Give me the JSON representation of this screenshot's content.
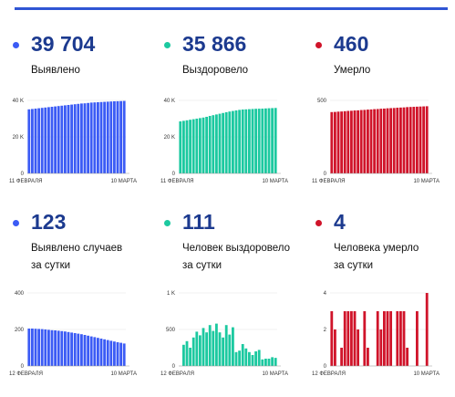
{
  "panels": [
    {
      "id": "confirmed-total",
      "color": "#3b5bf5",
      "value": "39 704",
      "label_lines": [
        "Выявлено"
      ],
      "chart_data": {
        "type": "bar",
        "title": "",
        "xlabel": "",
        "ylabel": "",
        "ylim": [
          0,
          40000
        ],
        "y_ticks": [
          0,
          20000,
          40000
        ],
        "y_tick_labels": [
          "0",
          "20 K",
          "40 K"
        ],
        "x_tick_labels": [
          "11 ФЕВРАЛЯ",
          "10 МАРТА"
        ],
        "values": [
          35100,
          35300,
          35500,
          35700,
          35900,
          36100,
          36300,
          36500,
          36700,
          36900,
          37100,
          37300,
          37500,
          37700,
          37900,
          38100,
          38300,
          38400,
          38600,
          38800,
          38900,
          39000,
          39100,
          39200,
          39300,
          39400,
          39500,
          39550,
          39620,
          39704
        ]
      }
    },
    {
      "id": "recovered-total",
      "color": "#1cc9a0",
      "value": "35 866",
      "label_lines": [
        "Выздоровело"
      ],
      "chart_data": {
        "type": "bar",
        "title": "",
        "xlabel": "",
        "ylabel": "",
        "ylim": [
          0,
          40000
        ],
        "y_ticks": [
          0,
          20000,
          40000
        ],
        "y_tick_labels": [
          "0",
          "20 K",
          "40 K"
        ],
        "x_tick_labels": [
          "11 ФЕВРАЛЯ",
          "10 МАРТА"
        ],
        "values": [
          28500,
          28800,
          29100,
          29400,
          29700,
          30000,
          30300,
          30600,
          31000,
          31500,
          31900,
          32300,
          32700,
          33100,
          33500,
          33900,
          34200,
          34500,
          34800,
          35000,
          35100,
          35200,
          35300,
          35400,
          35450,
          35500,
          35600,
          35700,
          35780,
          35866
        ]
      }
    },
    {
      "id": "deaths-total",
      "color": "#d0142a",
      "value": "460",
      "label_lines": [
        "Умерло"
      ],
      "chart_data": {
        "type": "bar",
        "title": "",
        "xlabel": "",
        "ylabel": "",
        "ylim": [
          0,
          500
        ],
        "y_ticks": [
          0,
          500
        ],
        "y_tick_labels": [
          "0",
          "500"
        ],
        "x_tick_labels": [
          "11 ФЕВРАЛЯ",
          "10 МАРТА"
        ],
        "values": [
          420,
          421,
          423,
          424,
          426,
          428,
          429,
          431,
          432,
          434,
          435,
          437,
          438,
          440,
          441,
          443,
          444,
          446,
          447,
          448,
          450,
          451,
          452,
          454,
          455,
          456,
          457,
          458,
          459,
          460
        ]
      }
    },
    {
      "id": "confirmed-daily",
      "color": "#3b5bf5",
      "value": "123",
      "label_lines": [
        "Выявлено случаев",
        "за сутки"
      ],
      "chart_data": {
        "type": "bar",
        "title": "",
        "xlabel": "",
        "ylabel": "",
        "ylim": [
          0,
          400
        ],
        "y_ticks": [
          0,
          200,
          400
        ],
        "y_tick_labels": [
          "0",
          "200",
          "400"
        ],
        "x_tick_labels": [
          "12 ФЕВРАЛЯ",
          "10 МАРТА"
        ],
        "values": [
          205,
          205,
          204,
          203,
          202,
          200,
          198,
          196,
          195,
          193,
          191,
          189,
          186,
          183,
          180,
          177,
          174,
          170,
          166,
          162,
          158,
          154,
          150,
          146,
          142,
          138,
          134,
          130,
          127,
          123
        ]
      }
    },
    {
      "id": "recovered-daily",
      "color": "#1cc9a0",
      "value": "111",
      "label_lines": [
        "Человек выздоровело",
        "за сутки"
      ],
      "chart_data": {
        "type": "bar",
        "title": "",
        "xlabel": "",
        "ylabel": "",
        "ylim": [
          0,
          1000
        ],
        "y_ticks": [
          0,
          500,
          1000
        ],
        "y_tick_labels": [
          "0",
          "500",
          "1 K"
        ],
        "x_tick_labels": [
          "12 ФЕВРАЛЯ",
          "10 МАРТА"
        ],
        "values": [
          0,
          290,
          340,
          250,
          390,
          470,
          420,
          520,
          460,
          560,
          480,
          580,
          460,
          390,
          560,
          430,
          530,
          190,
          210,
          300,
          240,
          190,
          150,
          200,
          220,
          90,
          100,
          100,
          120,
          111
        ]
      }
    },
    {
      "id": "deaths-daily",
      "color": "#d0142a",
      "value": "4",
      "label_lines": [
        "Человека умерло",
        "за сутки"
      ],
      "chart_data": {
        "type": "bar",
        "title": "",
        "xlabel": "",
        "ylabel": "",
        "ylim": [
          0,
          4
        ],
        "y_ticks": [
          0,
          2,
          4
        ],
        "y_tick_labels": [
          "0",
          "2",
          "4"
        ],
        "x_tick_labels": [
          "12 ФЕВРАЛЯ",
          "10 МАРТА"
        ],
        "values": [
          3,
          2,
          0,
          1,
          3,
          3,
          3,
          3,
          2,
          0,
          3,
          1,
          0,
          0,
          3,
          2,
          3,
          3,
          3,
          0,
          3,
          3,
          3,
          1,
          0,
          0,
          3,
          0,
          0,
          4
        ]
      }
    }
  ]
}
